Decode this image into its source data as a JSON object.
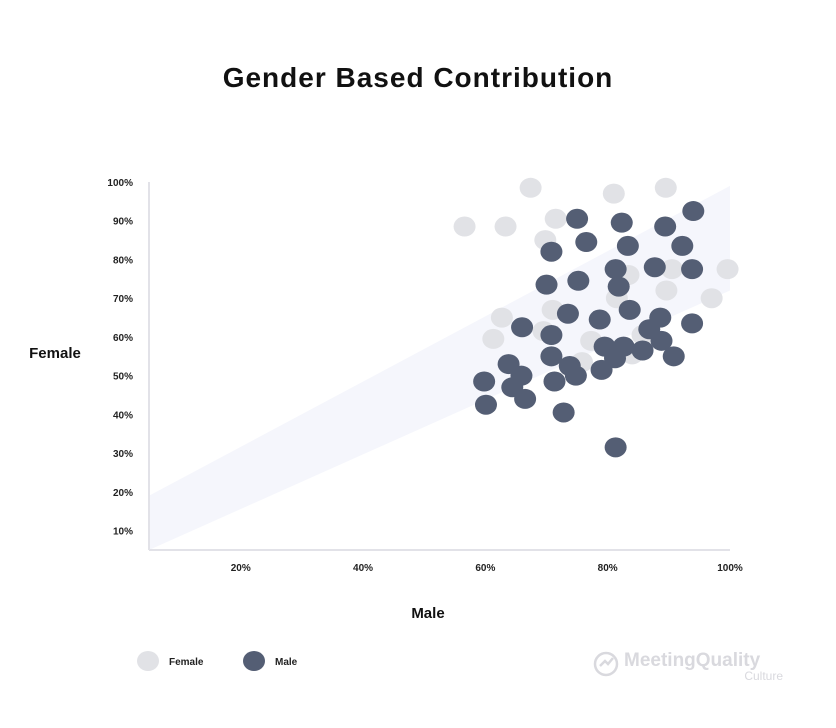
{
  "chart_data": {
    "type": "scatter",
    "title": "Gender Based Contribution",
    "xlabel": "Male",
    "ylabel": "Female",
    "xlim": [
      5,
      100
    ],
    "ylim": [
      5,
      100
    ],
    "x_ticks": [
      "20%",
      "40%",
      "60%",
      "80%",
      "100%"
    ],
    "y_ticks": [
      "10%",
      "20%",
      "30%",
      "40%",
      "50%",
      "60%",
      "70%",
      "80%",
      "90%",
      "100%"
    ],
    "grid": false,
    "legend_position": "bottom-left",
    "series": [
      {
        "name": "Female",
        "color": "#e1e2e6",
        "points": [
          {
            "x": 56.6,
            "y": 88.5
          },
          {
            "x": 63.3,
            "y": 88.5
          },
          {
            "x": 67.4,
            "y": 98.5
          },
          {
            "x": 71.5,
            "y": 90.5
          },
          {
            "x": 69.8,
            "y": 85
          },
          {
            "x": 81,
            "y": 97
          },
          {
            "x": 89.5,
            "y": 98.5
          },
          {
            "x": 83.4,
            "y": 76
          },
          {
            "x": 90.5,
            "y": 77.5
          },
          {
            "x": 99.6,
            "y": 77.5
          },
          {
            "x": 97,
            "y": 70
          },
          {
            "x": 89.6,
            "y": 72
          },
          {
            "x": 81.5,
            "y": 70
          },
          {
            "x": 71,
            "y": 67
          },
          {
            "x": 62.7,
            "y": 65
          },
          {
            "x": 61.3,
            "y": 59.5
          },
          {
            "x": 69.5,
            "y": 61.5
          },
          {
            "x": 77.3,
            "y": 59
          },
          {
            "x": 75.8,
            "y": 53.5
          },
          {
            "x": 84,
            "y": 55.5
          },
          {
            "x": 85.7,
            "y": 60.5
          }
        ]
      },
      {
        "name": "Male",
        "color": "#545e74",
        "points": [
          {
            "x": 75,
            "y": 90.5
          },
          {
            "x": 82.3,
            "y": 89.5
          },
          {
            "x": 89.4,
            "y": 88.5
          },
          {
            "x": 94,
            "y": 92.5
          },
          {
            "x": 76.5,
            "y": 84.5
          },
          {
            "x": 83.3,
            "y": 83.5
          },
          {
            "x": 92.2,
            "y": 83.5
          },
          {
            "x": 70.8,
            "y": 82
          },
          {
            "x": 81.3,
            "y": 77.5
          },
          {
            "x": 87.7,
            "y": 78
          },
          {
            "x": 93.8,
            "y": 77.5
          },
          {
            "x": 70,
            "y": 73.5
          },
          {
            "x": 75.2,
            "y": 74.5
          },
          {
            "x": 81.8,
            "y": 73
          },
          {
            "x": 83.6,
            "y": 67
          },
          {
            "x": 73.5,
            "y": 66
          },
          {
            "x": 78.7,
            "y": 64.5
          },
          {
            "x": 66,
            "y": 62.5
          },
          {
            "x": 70.8,
            "y": 60.5
          },
          {
            "x": 88.6,
            "y": 65
          },
          {
            "x": 93.8,
            "y": 63.5
          },
          {
            "x": 86.8,
            "y": 62
          },
          {
            "x": 88.8,
            "y": 59
          },
          {
            "x": 79.5,
            "y": 57.5
          },
          {
            "x": 82.6,
            "y": 57.5
          },
          {
            "x": 85.7,
            "y": 56.5
          },
          {
            "x": 90.8,
            "y": 55
          },
          {
            "x": 70.8,
            "y": 55
          },
          {
            "x": 73.8,
            "y": 52.5
          },
          {
            "x": 81.2,
            "y": 54.5
          },
          {
            "x": 79,
            "y": 51.5
          },
          {
            "x": 63.8,
            "y": 53
          },
          {
            "x": 65.9,
            "y": 50
          },
          {
            "x": 74.8,
            "y": 50
          },
          {
            "x": 71.3,
            "y": 48.5
          },
          {
            "x": 59.8,
            "y": 48.5
          },
          {
            "x": 64.4,
            "y": 47
          },
          {
            "x": 66.5,
            "y": 44
          },
          {
            "x": 60.1,
            "y": 42.5
          },
          {
            "x": 72.8,
            "y": 40.5
          },
          {
            "x": 81.3,
            "y": 31.5
          }
        ]
      }
    ],
    "band": {
      "color": "#f5f6fc",
      "lower": [
        {
          "x": 5,
          "y": 5
        },
        {
          "x": 100,
          "y": 72
        }
      ],
      "upper": [
        {
          "x": 5,
          "y": 19
        },
        {
          "x": 100,
          "y": 99
        }
      ]
    }
  },
  "legend": [
    {
      "label": "Female",
      "color": "#e1e2e6"
    },
    {
      "label": "Male",
      "color": "#545e74"
    }
  ],
  "watermark": {
    "brand": "MeetingQuality",
    "sub": "Culture",
    "color": "#d9d9de"
  }
}
